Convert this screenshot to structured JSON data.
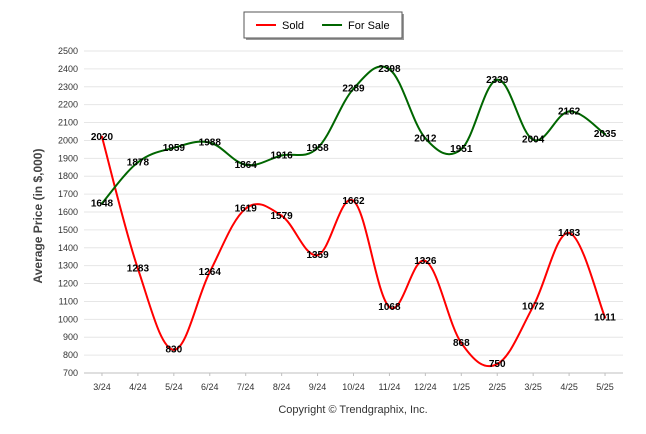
{
  "chart_data": {
    "type": "line",
    "categories": [
      "3/24",
      "4/24",
      "5/24",
      "6/24",
      "7/24",
      "8/24",
      "9/24",
      "10/24",
      "11/24",
      "12/24",
      "1/25",
      "2/25",
      "3/25",
      "4/25",
      "5/25"
    ],
    "series": [
      {
        "name": "Sold",
        "color": "#ff0000",
        "values": [
          2020,
          1283,
          830,
          1264,
          1619,
          1579,
          1359,
          1662,
          1068,
          1326,
          868,
          750,
          1072,
          1483,
          1011
        ]
      },
      {
        "name": "For Sale",
        "color": "#006600",
        "values": [
          1648,
          1878,
          1959,
          1988,
          1864,
          1916,
          1958,
          2289,
          2398,
          2012,
          1951,
          2339,
          2004,
          2162,
          2035
        ]
      }
    ],
    "ylabel": "Average Price (in $,000)",
    "xlabel": "",
    "ylim": [
      700,
      2500
    ],
    "yticks": [
      700,
      800,
      900,
      1000,
      1100,
      1200,
      1300,
      1400,
      1500,
      1600,
      1700,
      1800,
      1900,
      2000,
      2100,
      2200,
      2300,
      2400,
      2500
    ],
    "grid": true,
    "legend_position": "top-center"
  },
  "footer": {
    "copyright": "Copyright © Trendgraphix, Inc."
  }
}
